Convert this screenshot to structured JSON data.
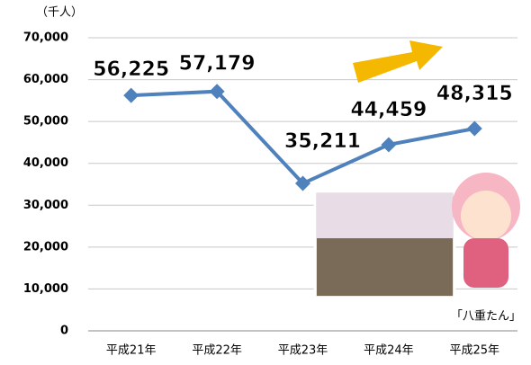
{
  "chart_data": {
    "type": "line",
    "ylabel": "（千人）",
    "categories": [
      "平成21年",
      "平成22年",
      "平成23年",
      "平成24年",
      "平成25年"
    ],
    "series": [
      {
        "name": null,
        "color": "#4f81bd",
        "values": [
          56225,
          57179,
          35211,
          44459,
          48315
        ],
        "value_labels": [
          "56,225",
          "57,179",
          "35,211",
          "44,459",
          "48,315"
        ]
      }
    ],
    "ylim": [
      0,
      70000
    ],
    "yticks": [
      0,
      {
        "value": 10000,
        "label": "10,000"
      },
      {
        "value": 20000,
        "label": "20,000"
      },
      {
        "value": 30000,
        "label": "30,000"
      },
      {
        "value": 40000,
        "label": "40,000"
      },
      {
        "value": 50000,
        "label": "50,000"
      },
      {
        "value": 60000,
        "label": "60,000"
      },
      {
        "value": 70000,
        "label": "70,000"
      }
    ],
    "grid": true,
    "annotation": "「八重たん」"
  }
}
